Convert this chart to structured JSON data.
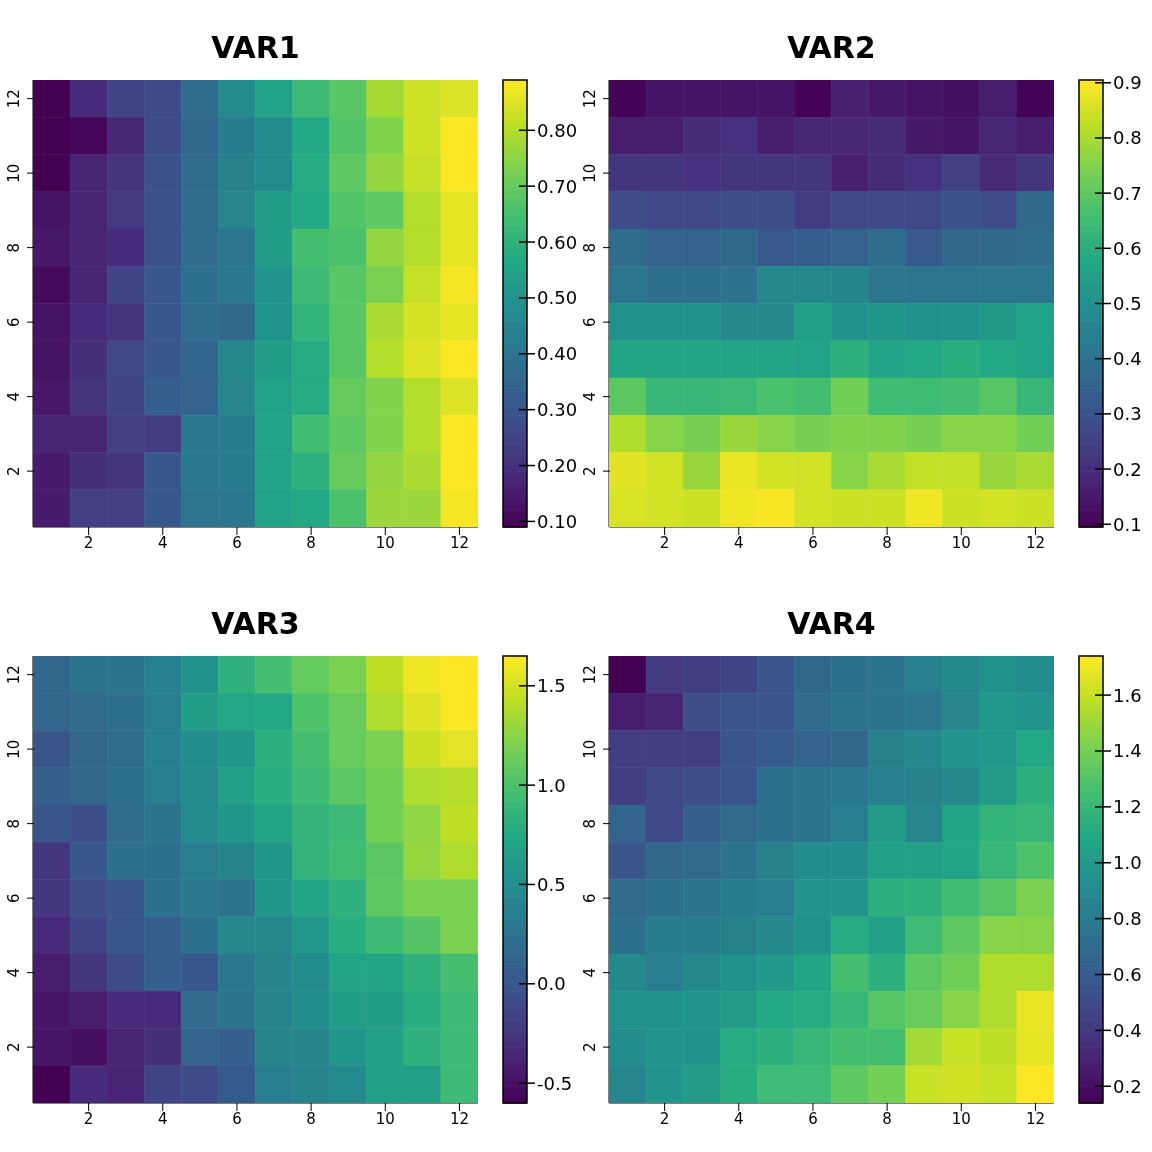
{
  "chart_data": [
    {
      "type": "heatmap",
      "title": "VAR1",
      "categories": [
        null,
        "2",
        null,
        "4",
        null,
        "6",
        null,
        "8",
        null,
        "10",
        null,
        "12"
      ],
      "y_categories": [
        "12",
        null,
        "10",
        null,
        "8",
        null,
        "6",
        null,
        "4",
        null,
        "2",
        null
      ],
      "clim": [
        0.09,
        0.89
      ],
      "cticks": [
        {
          "value": 0.1,
          "label": "0.10"
        },
        {
          "value": 0.2,
          "label": "0.20"
        },
        {
          "value": 0.3,
          "label": "0.30"
        },
        {
          "value": 0.4,
          "label": "0.40"
        },
        {
          "value": 0.5,
          "label": "0.50"
        },
        {
          "value": 0.6,
          "label": "0.60"
        },
        {
          "value": 0.7,
          "label": "0.70"
        },
        {
          "value": 0.8,
          "label": "0.80"
        }
      ],
      "cells": [
        [
          0.09,
          0.19,
          0.25,
          0.27,
          0.37,
          0.47,
          0.55,
          0.63,
          0.68,
          0.78,
          0.83,
          0.85
        ],
        [
          0.09,
          0.1,
          0.18,
          0.27,
          0.36,
          0.42,
          0.47,
          0.57,
          0.67,
          0.74,
          0.83,
          0.89
        ],
        [
          0.09,
          0.17,
          0.21,
          0.29,
          0.37,
          0.44,
          0.47,
          0.58,
          0.69,
          0.76,
          0.82,
          0.89
        ],
        [
          0.13,
          0.17,
          0.22,
          0.29,
          0.37,
          0.45,
          0.53,
          0.57,
          0.67,
          0.69,
          0.8,
          0.86
        ],
        [
          0.14,
          0.17,
          0.19,
          0.29,
          0.37,
          0.4,
          0.53,
          0.65,
          0.66,
          0.76,
          0.8,
          0.86
        ],
        [
          0.11,
          0.17,
          0.25,
          0.31,
          0.38,
          0.41,
          0.5,
          0.63,
          0.68,
          0.73,
          0.82,
          0.88
        ],
        [
          0.13,
          0.19,
          0.21,
          0.31,
          0.37,
          0.36,
          0.5,
          0.61,
          0.68,
          0.79,
          0.84,
          0.86
        ],
        [
          0.13,
          0.2,
          0.26,
          0.31,
          0.35,
          0.46,
          0.53,
          0.58,
          0.68,
          0.8,
          0.85,
          0.89
        ],
        [
          0.14,
          0.21,
          0.25,
          0.33,
          0.34,
          0.45,
          0.55,
          0.58,
          0.7,
          0.74,
          0.8,
          0.85
        ],
        [
          0.17,
          0.17,
          0.24,
          0.23,
          0.41,
          0.42,
          0.55,
          0.64,
          0.69,
          0.74,
          0.8,
          0.89
        ],
        [
          0.15,
          0.2,
          0.21,
          0.31,
          0.41,
          0.42,
          0.55,
          0.6,
          0.7,
          0.76,
          0.79,
          0.89
        ],
        [
          0.15,
          0.24,
          0.24,
          0.31,
          0.4,
          0.41,
          0.55,
          0.57,
          0.66,
          0.77,
          0.77,
          0.88
        ]
      ]
    },
    {
      "type": "heatmap",
      "title": "VAR2",
      "categories": [
        null,
        "2",
        null,
        "4",
        null,
        "6",
        null,
        "8",
        null,
        "10",
        null,
        "12"
      ],
      "y_categories": [
        "12",
        null,
        "10",
        null,
        "8",
        null,
        "6",
        null,
        "4",
        null,
        "2",
        null
      ],
      "clim": [
        0.095,
        0.905
      ],
      "cticks": [
        0.1,
        0.2,
        0.3,
        0.4,
        0.5,
        0.6,
        0.7,
        0.8,
        0.9
      ],
      "cells": [
        [
          0.1,
          0.14,
          0.14,
          0.14,
          0.14,
          0.1,
          0.17,
          0.15,
          0.14,
          0.13,
          0.16,
          0.1
        ],
        [
          0.16,
          0.16,
          0.2,
          0.21,
          0.16,
          0.18,
          0.18,
          0.2,
          0.15,
          0.14,
          0.18,
          0.16
        ],
        [
          0.22,
          0.22,
          0.21,
          0.22,
          0.22,
          0.22,
          0.17,
          0.2,
          0.21,
          0.25,
          0.19,
          0.22
        ],
        [
          0.28,
          0.27,
          0.27,
          0.29,
          0.29,
          0.24,
          0.27,
          0.27,
          0.27,
          0.3,
          0.28,
          0.37
        ],
        [
          0.38,
          0.35,
          0.35,
          0.37,
          0.32,
          0.34,
          0.35,
          0.38,
          0.32,
          0.36,
          0.37,
          0.38
        ],
        [
          0.41,
          0.39,
          0.39,
          0.4,
          0.47,
          0.47,
          0.46,
          0.41,
          0.41,
          0.41,
          0.41,
          0.41
        ],
        [
          0.5,
          0.5,
          0.5,
          0.47,
          0.47,
          0.55,
          0.5,
          0.52,
          0.5,
          0.5,
          0.53,
          0.56
        ],
        [
          0.57,
          0.57,
          0.57,
          0.57,
          0.57,
          0.56,
          0.61,
          0.56,
          0.58,
          0.6,
          0.58,
          0.56
        ],
        [
          0.7,
          0.63,
          0.63,
          0.64,
          0.67,
          0.66,
          0.73,
          0.65,
          0.65,
          0.66,
          0.69,
          0.63
        ],
        [
          0.81,
          0.76,
          0.74,
          0.78,
          0.76,
          0.74,
          0.75,
          0.75,
          0.74,
          0.76,
          0.76,
          0.73
        ],
        [
          0.87,
          0.85,
          0.78,
          0.88,
          0.85,
          0.85,
          0.76,
          0.8,
          0.83,
          0.83,
          0.78,
          0.8
        ],
        [
          0.86,
          0.85,
          0.84,
          0.89,
          0.9,
          0.85,
          0.84,
          0.84,
          0.89,
          0.84,
          0.85,
          0.84
        ]
      ]
    },
    {
      "type": "heatmap",
      "title": "VAR3",
      "categories": [
        null,
        "2",
        null,
        "4",
        null,
        "6",
        null,
        "8",
        null,
        "10",
        null,
        "12"
      ],
      "y_categories": [
        "12",
        null,
        "10",
        null,
        "8",
        null,
        "6",
        null,
        "4",
        null,
        "2",
        null
      ],
      "clim": [
        -0.6,
        1.65
      ],
      "cticks": [
        -0.5,
        {
          "value": 0,
          "label": "0.0"
        },
        0.5,
        {
          "value": 1,
          "label": "1.0"
        },
        1.5
      ],
      "cells": [
        [
          0.14,
          0.26,
          0.26,
          0.37,
          0.53,
          0.84,
          0.98,
          1.11,
          1.2,
          1.43,
          1.6,
          1.65
        ],
        [
          0.14,
          0.17,
          0.21,
          0.35,
          0.64,
          0.73,
          0.75,
          1.02,
          1.13,
          1.38,
          1.54,
          1.65
        ],
        [
          0.0,
          0.14,
          0.19,
          0.37,
          0.48,
          0.57,
          0.82,
          0.98,
          1.13,
          1.2,
          1.47,
          1.56
        ],
        [
          0.08,
          0.14,
          0.23,
          0.35,
          0.46,
          0.68,
          0.8,
          0.93,
          1.07,
          1.18,
          1.38,
          1.4
        ],
        [
          0.0,
          -0.06,
          0.19,
          0.26,
          0.46,
          0.57,
          0.71,
          0.86,
          0.93,
          1.18,
          1.27,
          1.43
        ],
        [
          -0.24,
          0.01,
          0.21,
          0.23,
          0.35,
          0.41,
          0.57,
          0.86,
          0.95,
          1.07,
          1.29,
          1.38
        ],
        [
          -0.24,
          -0.06,
          0.0,
          0.23,
          0.3,
          0.26,
          0.57,
          0.71,
          0.84,
          1.09,
          1.2,
          1.2
        ],
        [
          -0.33,
          -0.15,
          0.01,
          0.08,
          0.23,
          0.44,
          0.44,
          0.59,
          0.8,
          0.93,
          1.04,
          1.2
        ],
        [
          -0.42,
          -0.24,
          -0.08,
          0.08,
          0.01,
          0.3,
          0.41,
          0.48,
          0.71,
          0.71,
          0.84,
          0.98
        ],
        [
          -0.47,
          -0.42,
          -0.33,
          -0.33,
          0.17,
          0.26,
          0.39,
          0.48,
          0.64,
          0.64,
          0.8,
          0.93
        ],
        [
          -0.47,
          -0.51,
          -0.38,
          -0.29,
          0.12,
          0.08,
          0.41,
          0.41,
          0.57,
          0.66,
          0.84,
          0.93
        ],
        [
          -0.6,
          -0.33,
          -0.38,
          -0.15,
          -0.08,
          0.03,
          0.35,
          0.39,
          0.46,
          0.66,
          0.66,
          0.93
        ]
      ]
    },
    {
      "type": "heatmap",
      "title": "VAR4",
      "categories": [
        null,
        "2",
        null,
        "4",
        null,
        "6",
        null,
        "8",
        null,
        "10",
        null,
        "12"
      ],
      "y_categories": [
        "12",
        null,
        "10",
        null,
        "8",
        null,
        "6",
        null,
        "4",
        null,
        "2",
        null
      ],
      "clim": [
        0.14,
        1.74
      ],
      "cticks": [
        0.2,
        0.4,
        0.6,
        0.8,
        {
          "value": 1,
          "label": "1.0"
        },
        1.2,
        1.4,
        1.6
      ],
      "cells": [
        [
          0.14,
          0.41,
          0.43,
          0.46,
          0.56,
          0.67,
          0.73,
          0.75,
          0.83,
          0.89,
          0.94,
          0.91
        ],
        [
          0.27,
          0.3,
          0.52,
          0.56,
          0.56,
          0.7,
          0.75,
          0.75,
          0.76,
          0.86,
          0.99,
          0.97
        ],
        [
          0.43,
          0.43,
          0.43,
          0.56,
          0.59,
          0.65,
          0.67,
          0.84,
          0.88,
          0.97,
          0.99,
          1.1
        ],
        [
          0.43,
          0.49,
          0.52,
          0.56,
          0.73,
          0.75,
          0.78,
          0.83,
          0.84,
          0.88,
          1.02,
          1.15
        ],
        [
          0.65,
          0.49,
          0.62,
          0.7,
          0.73,
          0.75,
          0.81,
          1.02,
          0.86,
          1.07,
          1.18,
          1.2
        ],
        [
          0.57,
          0.67,
          0.7,
          0.75,
          0.84,
          0.91,
          0.91,
          1.04,
          1.05,
          1.07,
          1.2,
          1.29
        ],
        [
          0.7,
          0.73,
          0.75,
          0.8,
          0.81,
          0.97,
          0.97,
          1.15,
          1.16,
          1.24,
          1.31,
          1.42
        ],
        [
          0.72,
          0.8,
          0.8,
          0.84,
          0.88,
          0.94,
          1.12,
          1.04,
          1.23,
          1.34,
          1.45,
          1.45
        ],
        [
          0.88,
          0.81,
          0.88,
          0.94,
          0.99,
          1.07,
          1.26,
          1.15,
          1.34,
          1.39,
          1.55,
          1.55
        ],
        [
          0.94,
          0.94,
          0.97,
          1.02,
          1.1,
          1.12,
          1.2,
          1.31,
          1.37,
          1.45,
          1.55,
          1.69
        ],
        [
          0.91,
          0.97,
          0.94,
          1.12,
          1.15,
          1.2,
          1.26,
          1.26,
          1.52,
          1.61,
          1.58,
          1.68
        ],
        [
          0.86,
          0.97,
          1.02,
          1.13,
          1.23,
          1.23,
          1.34,
          1.4,
          1.61,
          1.63,
          1.61,
          1.74
        ]
      ]
    }
  ]
}
